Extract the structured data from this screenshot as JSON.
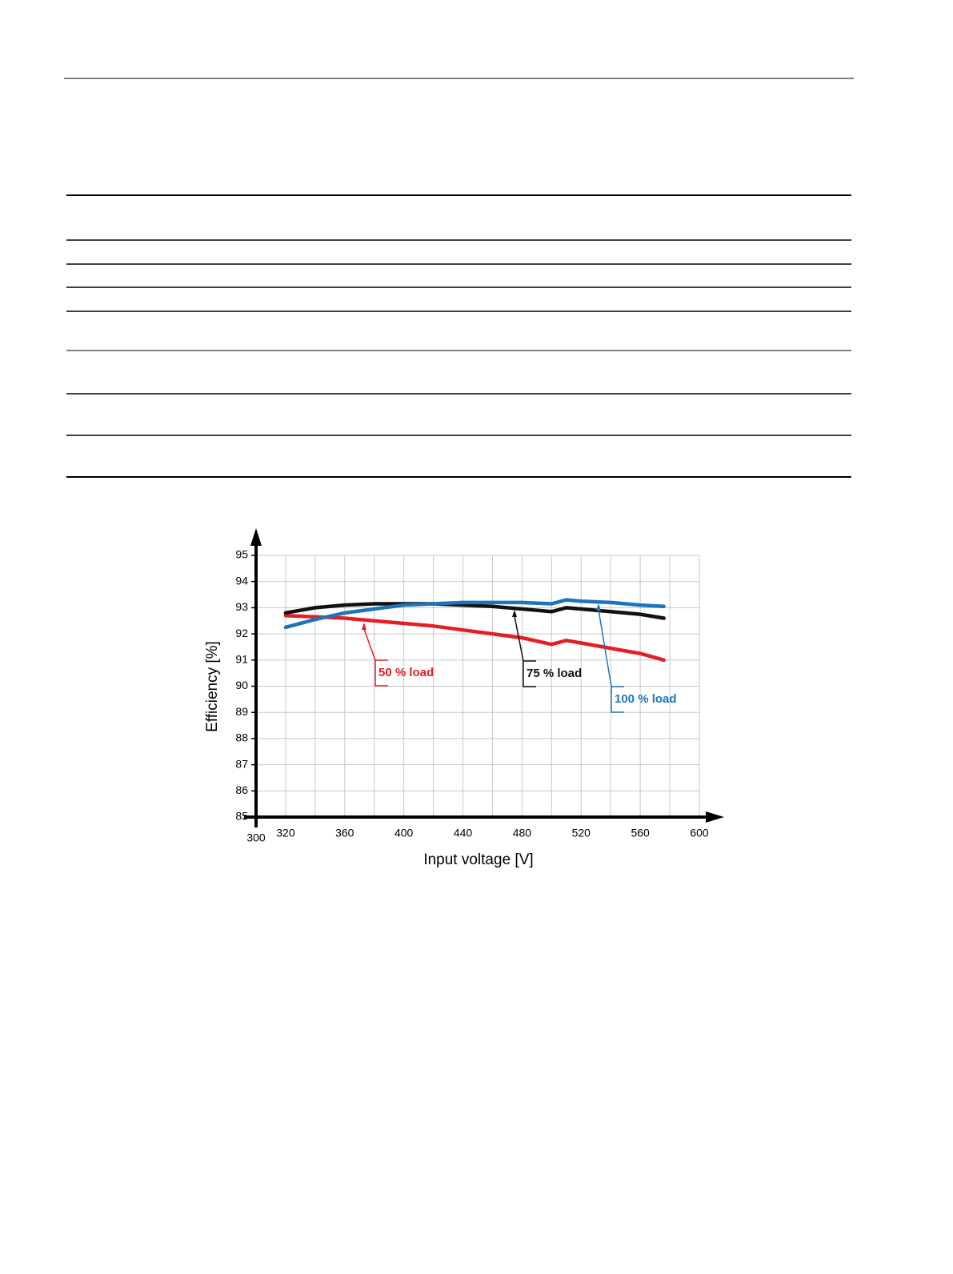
{
  "chart_data": {
    "type": "line",
    "xlabel": "Input voltage [V]",
    "ylabel": "Efficiency [%]",
    "x": [
      320,
      340,
      360,
      380,
      400,
      420,
      440,
      460,
      480,
      500,
      510,
      520,
      540,
      560,
      576
    ],
    "series": [
      {
        "name": "50 % load",
        "color": "#e31e24",
        "values": [
          92.7,
          92.65,
          92.6,
          92.5,
          92.4,
          92.3,
          92.15,
          92.0,
          91.85,
          91.6,
          91.75,
          91.65,
          91.45,
          91.25,
          91.0
        ]
      },
      {
        "name": "75 % load",
        "color": "#111111",
        "values": [
          92.8,
          93.0,
          93.1,
          93.15,
          93.15,
          93.15,
          93.1,
          93.05,
          92.95,
          92.85,
          93.0,
          92.95,
          92.85,
          92.75,
          92.6
        ]
      },
      {
        "name": "100 % load",
        "color": "#1f74b8",
        "values": [
          92.25,
          92.55,
          92.8,
          92.95,
          93.1,
          93.15,
          93.2,
          93.2,
          93.2,
          93.15,
          93.3,
          93.25,
          93.2,
          93.1,
          93.05
        ]
      }
    ],
    "xlim": [
      300,
      600
    ],
    "ylim": [
      85,
      95
    ],
    "xticks": [
      300,
      320,
      360,
      400,
      440,
      480,
      520,
      560,
      600
    ],
    "xgrid": [
      320,
      340,
      360,
      380,
      400,
      420,
      440,
      460,
      480,
      500,
      520,
      540,
      560,
      580,
      600
    ],
    "yticks": [
      85,
      86,
      87,
      88,
      89,
      90,
      91,
      92,
      93,
      94,
      95
    ],
    "grid": true
  }
}
